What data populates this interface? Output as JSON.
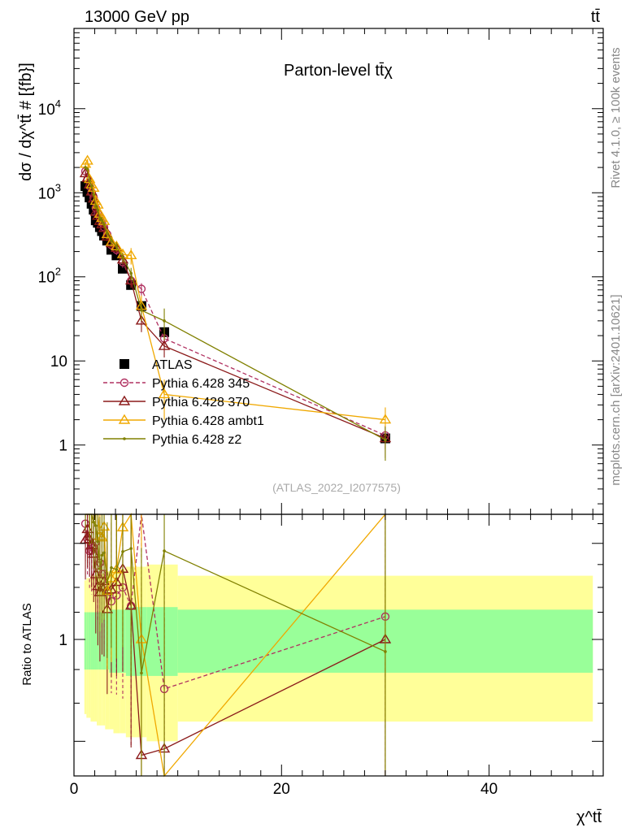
{
  "header": {
    "energy_label": "13000 GeV pp",
    "process_label": "tt̄",
    "side_label_top": "Rivet 4.1.0, ≥ 100k events",
    "side_label_bottom": "mcplots.cern.ch [arXiv:2401.10621]"
  },
  "chart_data": {
    "type": "scatter",
    "title": "Parton-level tt̄χ",
    "ylabel_main": "dσ / dχ^tt̄ # [{fb}]",
    "ylabel_ratio": "Ratio to ATLAS",
    "xlabel": "χ^tt̄",
    "analysis_id": "(ATLAS_2022_I2077575)",
    "xlim": [
      0,
      51
    ],
    "ylim_main": [
      0.15,
      90000
    ],
    "ylim_ratio": [
      0.62,
      1.55
    ],
    "y_scale_main": "log",
    "y_scale_ratio": "log",
    "x_ticks": [
      0,
      20,
      40
    ],
    "y_ticks_main": [
      {
        "value": 1,
        "label": "1"
      },
      {
        "value": 10,
        "label": "10"
      },
      {
        "value": 100,
        "label": "10^2"
      },
      {
        "value": 1000,
        "label": "10^3"
      },
      {
        "value": 10000,
        "label": "10^4"
      }
    ],
    "y_ticks_ratio": [
      {
        "value": 1,
        "label": "1"
      }
    ],
    "legend_position": "middle-left",
    "bins": [
      [
        1,
        1.2
      ],
      [
        1.2,
        1.4
      ],
      [
        1.4,
        1.6
      ],
      [
        1.6,
        1.8
      ],
      [
        1.8,
        2.0
      ],
      [
        2.0,
        2.2
      ],
      [
        2.2,
        2.4
      ],
      [
        2.4,
        2.6
      ],
      [
        2.6,
        2.8
      ],
      [
        2.8,
        3.0
      ],
      [
        3.0,
        3.4
      ],
      [
        3.4,
        3.8
      ],
      [
        3.8,
        4.4
      ],
      [
        4.4,
        5.0
      ],
      [
        5.0,
        6.0
      ],
      [
        6.0,
        7.0
      ],
      [
        7.0,
        10.0
      ],
      [
        10.0,
        50.0
      ]
    ],
    "series": [
      {
        "name": "ATLAS",
        "color": "#000000",
        "marker": "square",
        "x": [
          1.1,
          1.3,
          1.5,
          1.7,
          1.9,
          2.1,
          2.3,
          2.5,
          2.7,
          2.9,
          3.2,
          3.6,
          4.1,
          4.7,
          5.5,
          6.5,
          8.7,
          30
        ],
        "y": [
          1200,
          1020,
          880,
          740,
          630,
          470,
          440,
          390,
          350,
          310,
          270,
          210,
          180,
          125,
          80,
          45,
          22,
          1.2
        ],
        "band_inner": [
          0.1,
          0.1,
          0.1,
          0.1,
          0.1,
          0.1,
          0.1,
          0.1,
          0.1,
          0.1,
          0.1,
          0.11,
          0.11,
          0.11,
          0.12,
          0.12,
          0.12,
          0.11
        ],
        "band_outer": [
          0.23,
          0.24,
          0.24,
          0.25,
          0.25,
          0.25,
          0.26,
          0.26,
          0.26,
          0.26,
          0.27,
          0.27,
          0.28,
          0.28,
          0.29,
          0.29,
          0.3,
          0.25
        ]
      },
      {
        "name": "Pythia 6.428 345",
        "color": "#b03060",
        "marker": "circle",
        "dashed": true,
        "x": [
          1.1,
          1.3,
          1.5,
          1.7,
          1.9,
          2.1,
          2.3,
          2.5,
          2.7,
          2.9,
          3.2,
          3.6,
          4.1,
          4.7,
          5.5,
          6.5,
          8.7,
          30
        ],
        "y": [
          1800,
          1450,
          1200,
          1010,
          870,
          660,
          570,
          510,
          440,
          390,
          320,
          240,
          210,
          150,
          90,
          72,
          18.5,
          1.3
        ],
        "yerr": [
          100,
          80,
          70,
          65,
          60,
          50,
          45,
          45,
          40,
          40,
          35,
          30,
          28,
          22,
          16,
          12,
          5,
          0.4
        ]
      },
      {
        "name": "Pythia 6.428 370",
        "color": "#8b1a1a",
        "marker": "triangle",
        "x": [
          1.1,
          1.3,
          1.5,
          1.7,
          1.9,
          2.1,
          2.3,
          2.5,
          2.7,
          2.9,
          3.2,
          3.6,
          4.1,
          4.7,
          5.5,
          6.5,
          8.7,
          30
        ],
        "y": [
          1700,
          1500,
          1250,
          1030,
          850,
          590,
          530,
          460,
          420,
          380,
          300,
          250,
          220,
          160,
          90,
          30,
          15,
          1.2
        ],
        "yerr": [
          100,
          85,
          70,
          65,
          60,
          50,
          45,
          45,
          40,
          40,
          35,
          30,
          28,
          22,
          16,
          8,
          4,
          0.5
        ]
      },
      {
        "name": "Pythia 6.428 ambt1",
        "color": "#f0a800",
        "marker": "triangle",
        "x": [
          1.1,
          1.3,
          1.5,
          1.7,
          1.9,
          2.1,
          2.3,
          2.5,
          2.7,
          2.9,
          3.2,
          3.6,
          4.1,
          4.7,
          5.5,
          6.5,
          8.7,
          30
        ],
        "y": [
          2200,
          2400,
          1450,
          1250,
          1140,
          800,
          720,
          560,
          500,
          460,
          320,
          260,
          230,
          185,
          180,
          45,
          4,
          2.0
        ],
        "yerr": [
          120,
          120,
          80,
          75,
          70,
          60,
          55,
          50,
          45,
          45,
          35,
          30,
          28,
          25,
          40,
          15,
          2,
          0.8
        ]
      },
      {
        "name": "Pythia 6.428 z2",
        "color": "#808000",
        "marker": "dot",
        "x": [
          1.1,
          1.3,
          1.5,
          1.7,
          1.9,
          2.1,
          2.3,
          2.5,
          2.7,
          2.9,
          3.2,
          3.6,
          4.1,
          4.7,
          5.5,
          6.5,
          8.7,
          30
        ],
        "y": [
          2000,
          1900,
          1400,
          1200,
          950,
          700,
          620,
          500,
          470,
          420,
          330,
          270,
          230,
          170,
          110,
          40,
          30,
          1.15
        ],
        "yerr": [
          110,
          100,
          80,
          75,
          65,
          55,
          50,
          45,
          45,
          40,
          35,
          30,
          28,
          22,
          18,
          10,
          12,
          0.5
        ]
      }
    ]
  }
}
